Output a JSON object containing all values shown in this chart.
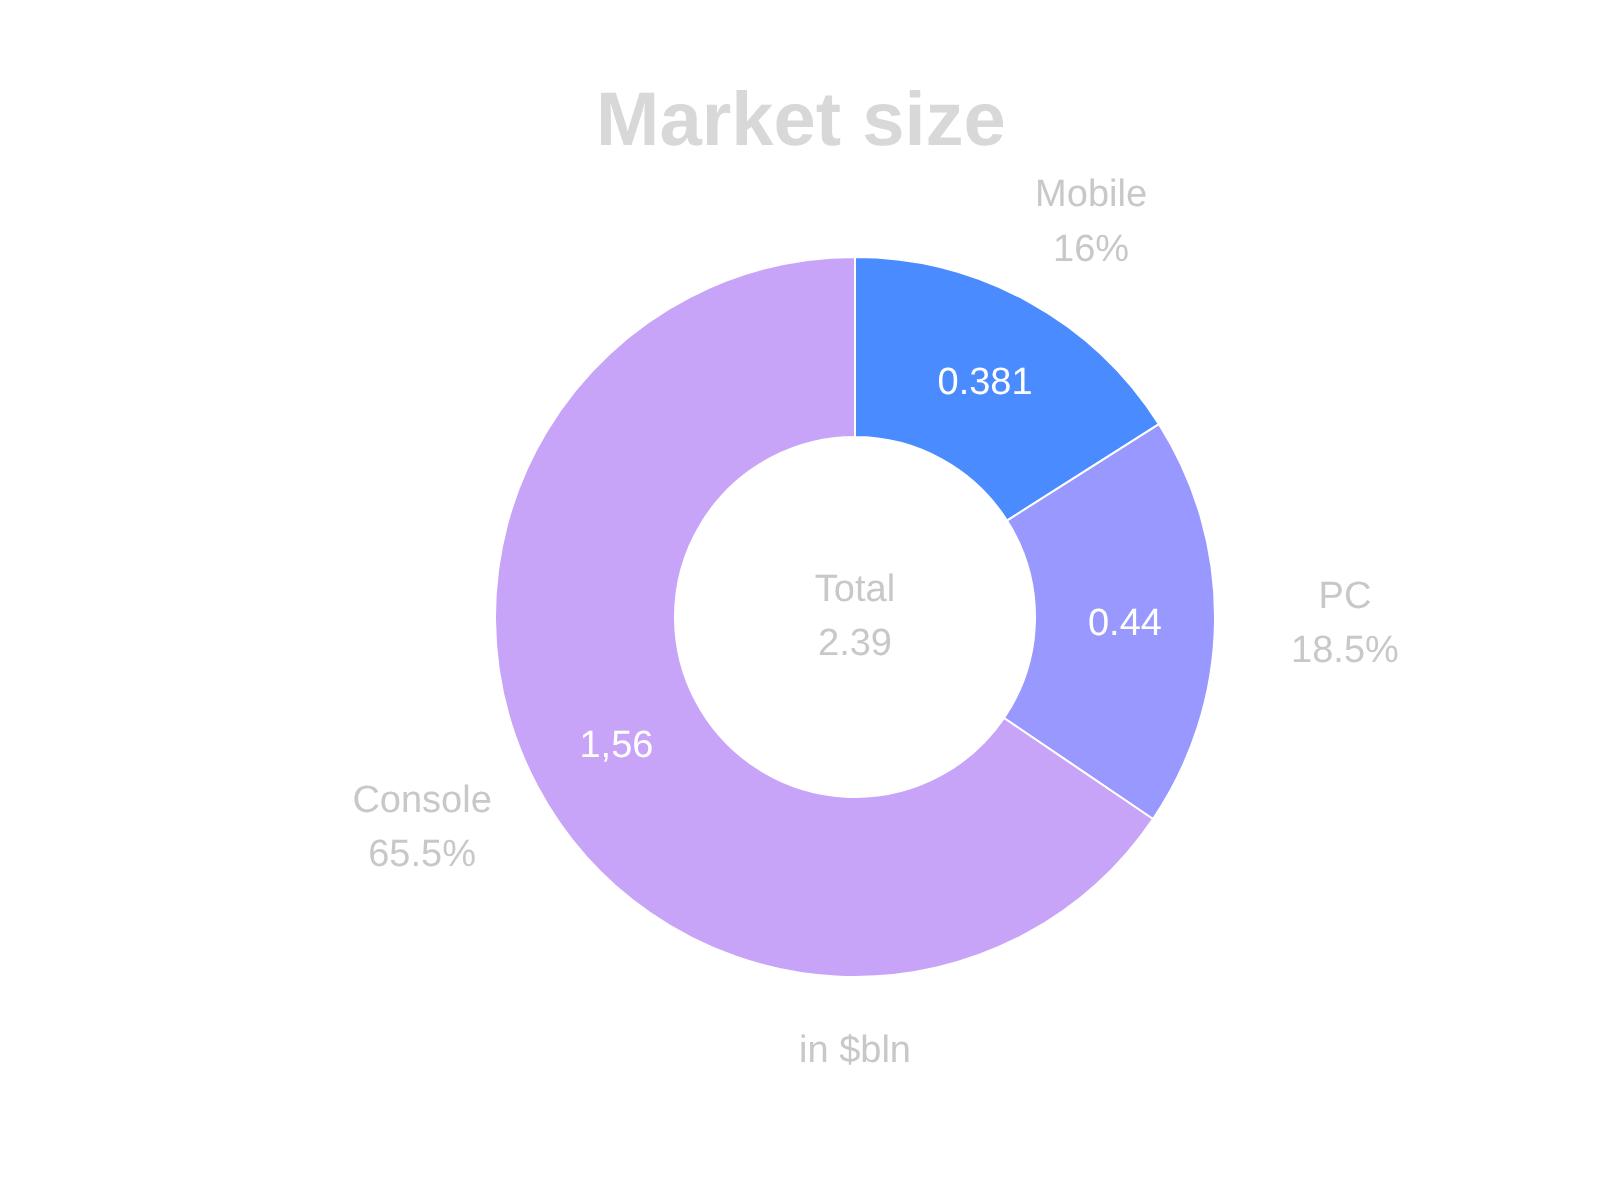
{
  "chart_data": {
    "type": "donut",
    "title": "Market size",
    "categories": [
      "Mobile 16%",
      "PC 18.5%",
      "Console 65.5%"
    ],
    "values": [
      0.381,
      0.44,
      1.56
    ],
    "value_labels": [
      "0.381",
      "0.44",
      "1,56"
    ],
    "colors": [
      "#4a8cff",
      "#9898ff",
      "#c8a4f8"
    ],
    "annotations": [
      "Total 2.39",
      "in $bln"
    ]
  }
}
